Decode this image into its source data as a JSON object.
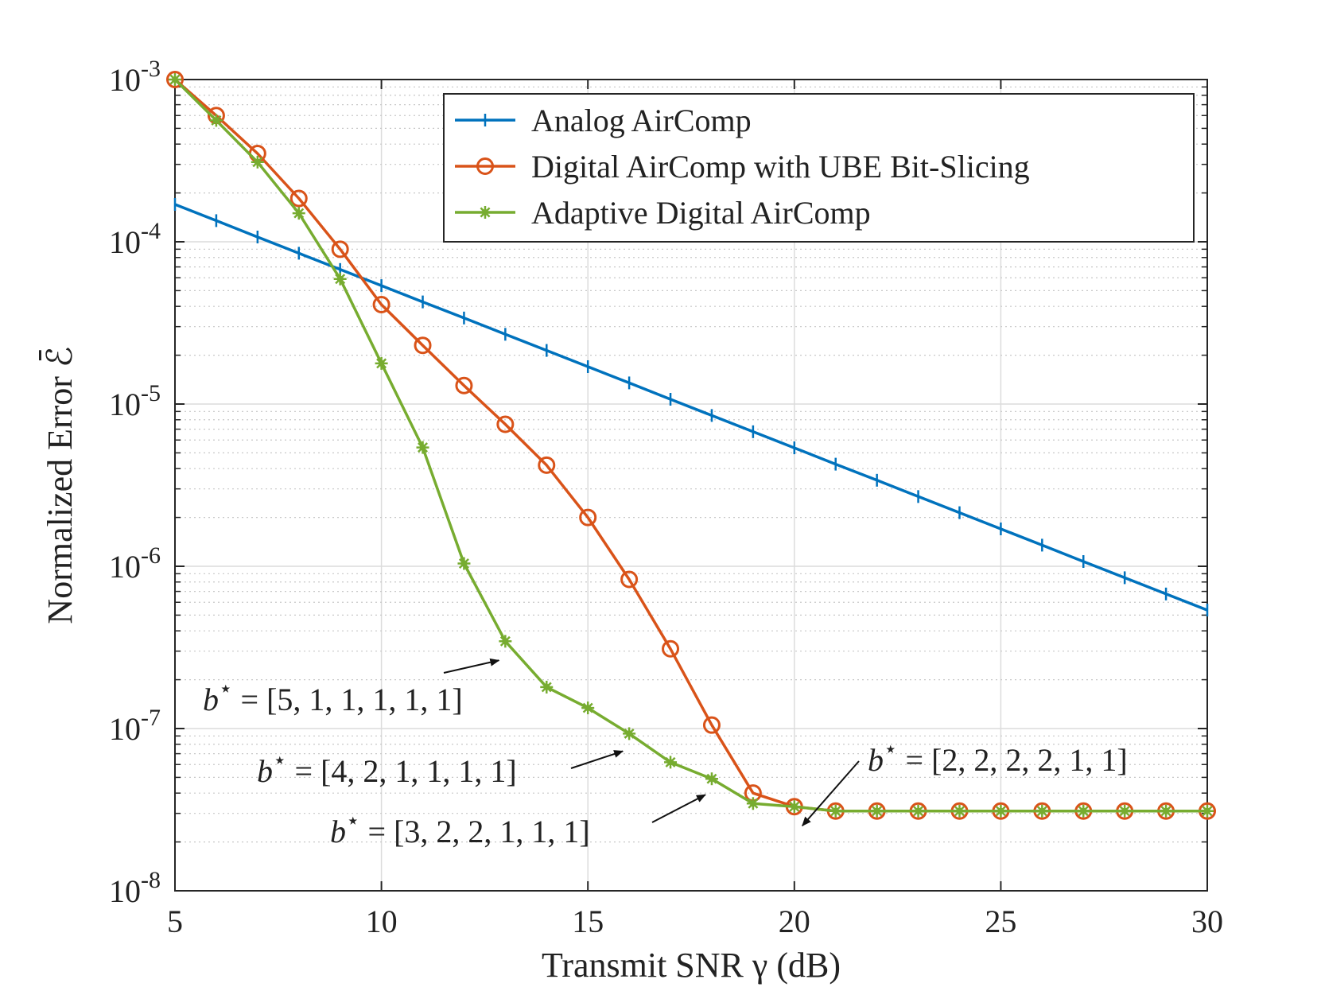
{
  "chart_data": {
    "type": "line",
    "xlabel": "Transmit SNR γ (dB)",
    "ylabel": "Normalized Error ℰ̄",
    "xlim": [
      5,
      30
    ],
    "ylim": [
      1e-08,
      0.001
    ],
    "yscale": "log",
    "grid": true,
    "legend_position": "top-right",
    "xticks": [
      5,
      10,
      15,
      20,
      25,
      30
    ],
    "yticks": [
      {
        "value": 0.001,
        "base": "10",
        "exp": "-3"
      },
      {
        "value": 0.0001,
        "base": "10",
        "exp": "-4"
      },
      {
        "value": 1e-05,
        "base": "10",
        "exp": "-5"
      },
      {
        "value": 1e-06,
        "base": "10",
        "exp": "-6"
      },
      {
        "value": 1e-07,
        "base": "10",
        "exp": "-7"
      },
      {
        "value": 1e-08,
        "base": "10",
        "exp": "-8"
      }
    ],
    "series": [
      {
        "name": "Analog AirComp",
        "color": "#0072BD",
        "marker": "plus",
        "x": [
          5,
          6,
          7,
          8,
          9,
          10,
          11,
          12,
          13,
          14,
          15,
          16,
          17,
          18,
          19,
          20,
          21,
          22,
          23,
          24,
          25,
          26,
          27,
          28,
          29,
          30
        ],
        "y": [
          0.00017,
          0.000135,
          0.000107,
          8.5e-05,
          6.75e-05,
          5.37e-05,
          4.26e-05,
          3.39e-05,
          2.69e-05,
          2.14e-05,
          1.7e-05,
          1.35e-05,
          1.07e-05,
          8.5e-06,
          6.75e-06,
          5.37e-06,
          4.26e-06,
          3.39e-06,
          2.69e-06,
          2.14e-06,
          1.7e-06,
          1.35e-06,
          1.07e-06,
          8.5e-07,
          6.75e-07,
          5.37e-07
        ]
      },
      {
        "name": "Digital AirComp with UBE Bit-Slicing",
        "color": "#D95319",
        "marker": "circle",
        "x": [
          5,
          6,
          7,
          8,
          9,
          10,
          11,
          12,
          13,
          14,
          15,
          16,
          17,
          18,
          19,
          20,
          21,
          22,
          23,
          24,
          25,
          26,
          27,
          28,
          29,
          30
        ],
        "y": [
          0.001,
          0.0006,
          0.00035,
          0.000185,
          9e-05,
          4.1e-05,
          2.3e-05,
          1.3e-05,
          7.5e-06,
          4.2e-06,
          2e-06,
          8.3e-07,
          3.1e-07,
          1.05e-07,
          4e-08,
          3.3e-08,
          3.1e-08,
          3.1e-08,
          3.1e-08,
          3.1e-08,
          3.1e-08,
          3.1e-08,
          3.1e-08,
          3.1e-08,
          3.1e-08,
          3.1e-08
        ]
      },
      {
        "name": "Adaptive Digital AirComp",
        "color": "#77AC30",
        "marker": "asterisk",
        "x": [
          5,
          6,
          7,
          8,
          9,
          10,
          11,
          12,
          13,
          14,
          15,
          16,
          17,
          18,
          19,
          20,
          21,
          22,
          23,
          24,
          25,
          26,
          27,
          28,
          29,
          30
        ],
        "y": [
          0.001,
          0.00056,
          0.00031,
          0.00015,
          5.9e-05,
          1.78e-05,
          5.4e-06,
          1.04e-06,
          3.45e-07,
          1.8e-07,
          1.34e-07,
          9.3e-08,
          6.2e-08,
          4.9e-08,
          3.45e-08,
          3.3e-08,
          3.1e-08,
          3.1e-08,
          3.1e-08,
          3.1e-08,
          3.1e-08,
          3.1e-08,
          3.1e-08,
          3.1e-08,
          3.1e-08,
          3.1e-08
        ]
      }
    ],
    "annotations": [
      {
        "text": "[5, 1, 1, 1, 1, 1]",
        "symbol": "b",
        "sup": "⋆",
        "eq": " = ",
        "target": [
          13,
          3.45e-07
        ]
      },
      {
        "text": "[4, 2, 1, 1, 1, 1]",
        "symbol": "b",
        "sup": "⋆",
        "eq": " = ",
        "target": [
          16,
          9.3e-08
        ]
      },
      {
        "text": "[3, 2, 2, 1, 1, 1]",
        "symbol": "b",
        "sup": "⋆",
        "eq": " = ",
        "target": [
          18,
          4.9e-08
        ]
      },
      {
        "text": "[2, 2, 2, 2, 1, 1]",
        "symbol": "b",
        "sup": "⋆",
        "eq": " = ",
        "target": [
          20,
          3.3e-08
        ]
      }
    ]
  }
}
